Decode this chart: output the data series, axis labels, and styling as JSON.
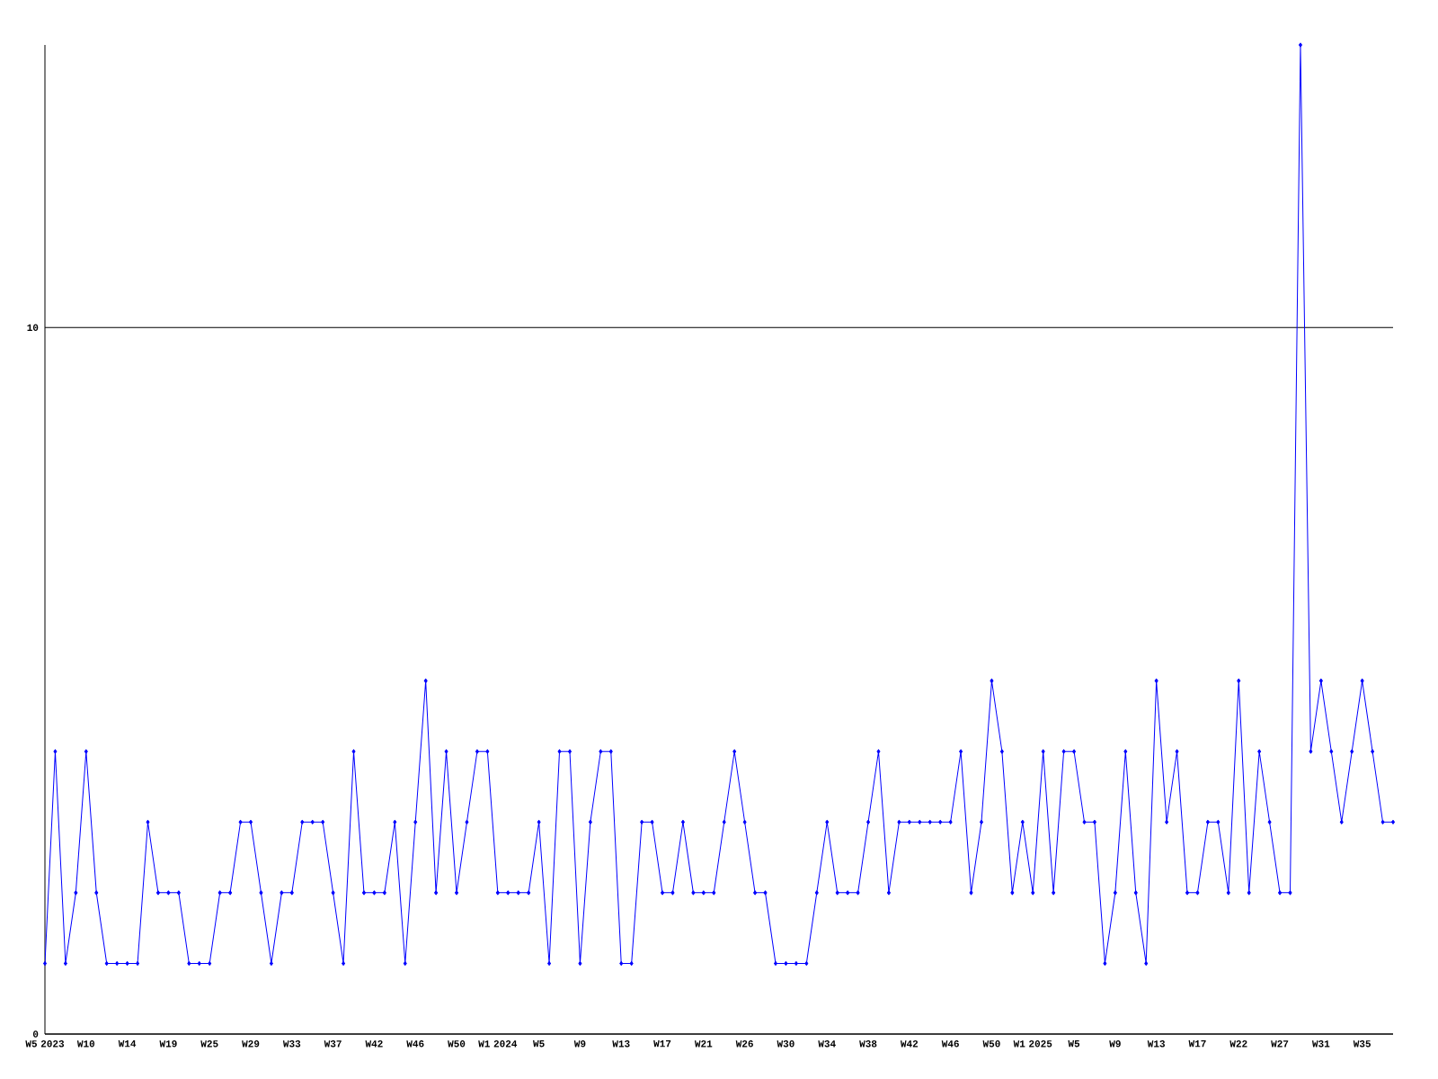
{
  "chart_data": {
    "type": "line",
    "categories": [
      "W5 2023",
      null,
      null,
      null,
      "W10",
      null,
      null,
      null,
      "W14",
      null,
      null,
      null,
      "W19",
      null,
      null,
      null,
      "W25",
      null,
      null,
      null,
      "W29",
      null,
      null,
      null,
      "W33",
      null,
      null,
      null,
      "W37",
      null,
      null,
      null,
      "W42",
      null,
      null,
      null,
      "W46",
      null,
      null,
      null,
      "W50",
      null,
      null,
      null,
      "W1 2024",
      null,
      null,
      null,
      "W5",
      null,
      null,
      null,
      "W9",
      null,
      null,
      null,
      "W13",
      null,
      null,
      null,
      "W17",
      null,
      null,
      null,
      "W21",
      null,
      null,
      null,
      "W26",
      null,
      null,
      null,
      "W30",
      null,
      null,
      null,
      "W34",
      null,
      null,
      null,
      "W38",
      null,
      null,
      null,
      "W42",
      null,
      null,
      null,
      "W46",
      null,
      null,
      null,
      "W50",
      null,
      null,
      null,
      "W1 2025",
      null,
      null,
      null,
      "W5",
      null,
      null,
      null,
      "W9",
      null,
      null,
      null,
      "W13",
      null,
      null,
      null,
      "W17",
      null,
      null,
      null,
      "W22",
      null,
      null,
      null,
      "W27",
      null,
      null,
      null,
      "W31",
      null,
      null,
      null,
      "W35",
      null,
      null,
      null
    ],
    "values": [
      1,
      4,
      1,
      2,
      4,
      2,
      1,
      1,
      1,
      1,
      3,
      2,
      2,
      2,
      1,
      1,
      1,
      2,
      2,
      3,
      3,
      2,
      1,
      2,
      2,
      3,
      3,
      3,
      2,
      1,
      4,
      2,
      2,
      2,
      3,
      1,
      3,
      5,
      2,
      4,
      2,
      3,
      4,
      4,
      2,
      2,
      2,
      2,
      3,
      1,
      4,
      4,
      1,
      3,
      4,
      4,
      1,
      1,
      3,
      3,
      2,
      2,
      3,
      2,
      2,
      2,
      3,
      4,
      3,
      2,
      2,
      1,
      1,
      1,
      1,
      2,
      3,
      2,
      2,
      2,
      3,
      4,
      2,
      3,
      3,
      3,
      3,
      3,
      3,
      4,
      2,
      3,
      5,
      4,
      2,
      3,
      2,
      4,
      2,
      4,
      4,
      3,
      3,
      1,
      2,
      4,
      2,
      1,
      5,
      3,
      4,
      2,
      2,
      3,
      3,
      2,
      5,
      2,
      4,
      3,
      2,
      2,
      14,
      4,
      5,
      4,
      3,
      4,
      5,
      4,
      3,
      3
    ],
    "color": "#0000ff",
    "ylim": [
      0,
      14
    ],
    "yticks": [
      0,
      10
    ],
    "grid": "y",
    "marker": "diamond",
    "line_style": "solid"
  }
}
